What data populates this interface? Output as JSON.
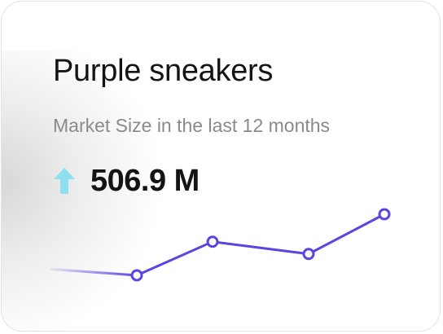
{
  "card": {
    "title": "Purple sneakers",
    "subtitle": "Market Size in the last 12 months",
    "value": "506.9 M",
    "trend_icon": "arrow-up-icon",
    "colors": {
      "accent": "#5b45e0",
      "trend": "#8fdff0",
      "title": "#141414",
      "subtitle": "#8a8a8a"
    }
  },
  "chart_data": {
    "type": "line",
    "x": [
      0,
      1,
      2,
      3,
      4
    ],
    "values": [
      0.1,
      0.0,
      0.55,
      0.35,
      1.0
    ],
    "markers": [
      false,
      true,
      true,
      true,
      true
    ]
  }
}
